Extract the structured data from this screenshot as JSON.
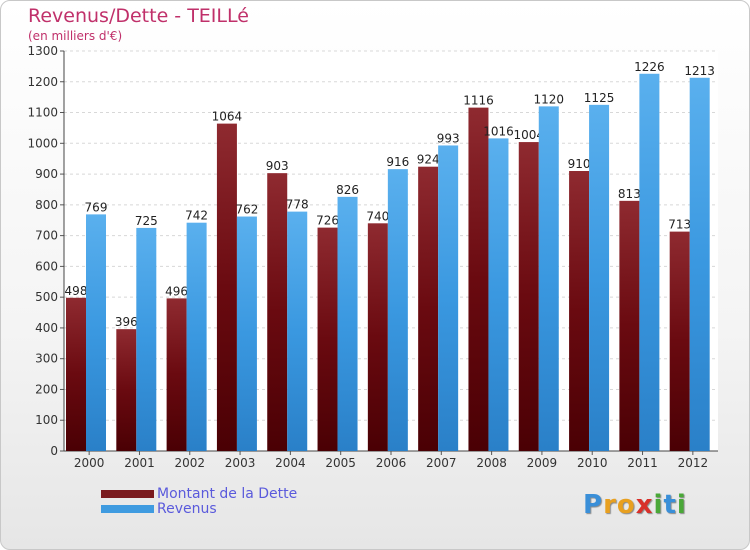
{
  "page": {
    "title": "Revenus/Dette - TEILLé",
    "subtitle": "(en milliers d'€)"
  },
  "chart_data": {
    "type": "bar",
    "title": "Revenus/Dette - TEILLé",
    "subtitle": "(en milliers d'€)",
    "xlabel": "",
    "ylabel": "",
    "ylim": [
      0,
      1300
    ],
    "yticks": [
      0,
      100,
      200,
      300,
      400,
      500,
      600,
      700,
      800,
      900,
      1000,
      1100,
      1200,
      1300
    ],
    "grid": true,
    "categories": [
      "2000",
      "2001",
      "2002",
      "2003",
      "2004",
      "2005",
      "2006",
      "2007",
      "2008",
      "2009",
      "2010",
      "2011",
      "2012"
    ],
    "series": [
      {
        "name": "Montant de la Dette",
        "color": "#7a1a1e",
        "values": [
          498,
          396,
          496,
          1064,
          903,
          726,
          740,
          924,
          1116,
          1004,
          910,
          813,
          713
        ]
      },
      {
        "name": "Revenus",
        "color": "#3f9be0",
        "values": [
          769,
          725,
          742,
          762,
          778,
          826,
          916,
          993,
          1016,
          1120,
          1125,
          1226,
          1213
        ]
      }
    ],
    "legend_position": "bottom-left"
  },
  "legend": {
    "items": [
      {
        "label": "Montant de la Dette",
        "color": "#7a1a1e"
      },
      {
        "label": "Revenus",
        "color": "#3f9be0"
      }
    ]
  },
  "logo": {
    "letters": [
      "P",
      "r",
      "o",
      "x",
      "i",
      "t",
      "i"
    ],
    "colors": [
      "#3a8fd8",
      "#e8a020",
      "#e8a020",
      "#d8302a",
      "#4aa838",
      "#3a8fd8",
      "#4aa838"
    ]
  }
}
